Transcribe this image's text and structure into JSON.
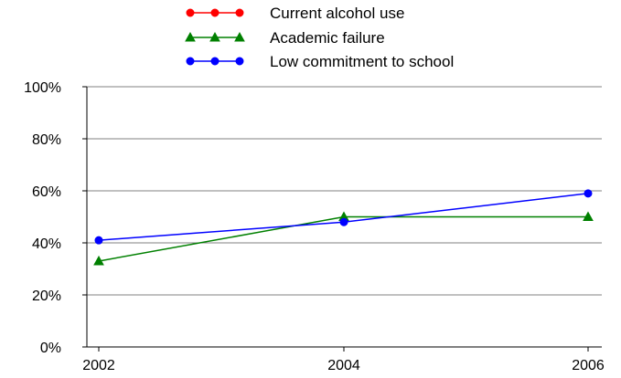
{
  "chart_data": {
    "type": "line",
    "x": [
      2002,
      2004,
      2006
    ],
    "x_tick_labels": [
      "2002",
      "2004",
      "2006"
    ],
    "y_tick_labels": [
      "0%",
      "20%",
      "40%",
      "60%",
      "80%",
      "100%"
    ],
    "ylim": [
      0,
      100
    ],
    "y_unit": "%",
    "grid": "horizontal",
    "legend_position": "top-center",
    "series": [
      {
        "name": "Current alcohol use",
        "color": "#ff0000",
        "marker": "circle",
        "values": [
          null,
          null,
          null
        ]
      },
      {
        "name": "Academic failure",
        "color": "#008000",
        "marker": "triangle",
        "values": [
          33,
          50,
          50
        ]
      },
      {
        "name": "Low commitment to school",
        "color": "#0000ff",
        "marker": "circle",
        "values": [
          41,
          48,
          59
        ]
      }
    ]
  }
}
